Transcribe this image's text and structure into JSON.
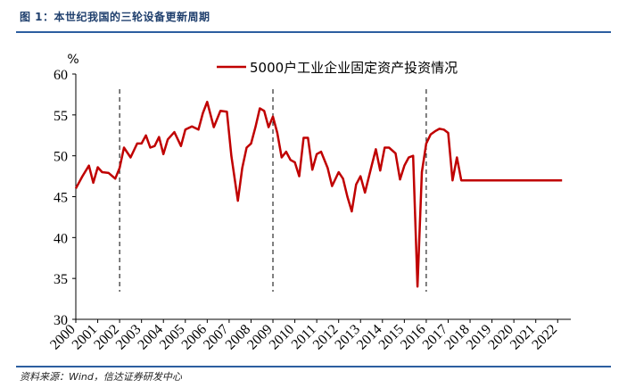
{
  "figure": {
    "title": "图 1：本世纪我国的三轮设备更新周期",
    "source": "资料来源：Wind，信达证券研发中心"
  },
  "chart_data": {
    "type": "line",
    "unit_label": "%",
    "ylim": [
      30,
      60
    ],
    "yticks": [
      "30",
      "35",
      "40",
      "45",
      "50",
      "55",
      "60"
    ],
    "xlim": [
      2000,
      2022.6
    ],
    "xticks": [
      "2000",
      "2001",
      "2002",
      "2003",
      "2004",
      "2005",
      "2006",
      "2007",
      "2008",
      "2009",
      "2010",
      "2011",
      "2012",
      "2013",
      "2014",
      "2015",
      "2016",
      "2017",
      "2018",
      "2019",
      "2020",
      "2021",
      "2022"
    ],
    "legend": "top-center",
    "cycle_markers": [
      2002,
      2009,
      2016
    ],
    "colors": {
      "series": "#c00000",
      "axis": "#000000"
    },
    "series": [
      {
        "name": "5000户工业企业固定资产投资情况",
        "x": [
          2000.0,
          2000.3,
          2000.6,
          2000.8,
          2001.0,
          2001.2,
          2001.5,
          2001.8,
          2002.0,
          2002.2,
          2002.5,
          2002.8,
          2003.0,
          2003.2,
          2003.4,
          2003.6,
          2003.8,
          2004.0,
          2004.2,
          2004.5,
          2004.8,
          2005.0,
          2005.3,
          2005.6,
          2005.8,
          2006.0,
          2006.3,
          2006.6,
          2006.9,
          2007.1,
          2007.4,
          2007.6,
          2007.8,
          2008.0,
          2008.2,
          2008.4,
          2008.6,
          2008.8,
          2009.0,
          2009.2,
          2009.4,
          2009.6,
          2009.8,
          2010.0,
          2010.2,
          2010.4,
          2010.6,
          2010.8,
          2011.0,
          2011.2,
          2011.5,
          2011.7,
          2012.0,
          2012.2,
          2012.4,
          2012.6,
          2012.8,
          2013.0,
          2013.2,
          2013.5,
          2013.7,
          2013.9,
          2014.1,
          2014.3,
          2014.6,
          2014.8,
          2015.0,
          2015.2,
          2015.4,
          2015.6,
          2015.8,
          2016.0,
          2016.2,
          2016.4,
          2016.6,
          2016.8,
          2017.0,
          2017.2,
          2017.4,
          2017.6,
          2017.8,
          2018.0,
          2018.2,
          2018.4,
          2018.6,
          2018.8,
          2019.0,
          2019.2,
          2019.4,
          2019.6,
          2019.8,
          2020.0,
          2020.2,
          2020.4,
          2020.6,
          2020.8,
          2021.0,
          2021.2,
          2021.4,
          2021.6,
          2021.8,
          2022.0,
          2022.2
        ],
        "values": [
          46.0,
          47.5,
          48.8,
          46.7,
          48.6,
          48.0,
          47.9,
          47.2,
          48.5,
          51.0,
          49.8,
          51.5,
          51.5,
          52.5,
          51.0,
          51.2,
          52.3,
          50.2,
          52.0,
          52.9,
          51.2,
          53.2,
          53.6,
          53.2,
          55.2,
          56.6,
          53.5,
          55.5,
          55.4,
          50.0,
          44.5,
          48.5,
          51.0,
          51.5,
          53.5,
          55.8,
          55.5,
          53.5,
          54.8,
          52.8,
          49.8,
          50.5,
          49.5,
          49.2,
          47.5,
          52.2,
          52.2,
          48.3,
          50.2,
          50.5,
          48.5,
          46.3,
          48.0,
          47.2,
          45.0,
          43.2,
          46.5,
          47.5,
          45.5,
          48.7,
          50.8,
          48.2,
          51.0,
          51.0,
          50.3,
          47.1,
          48.8,
          49.8,
          50.0,
          34.0,
          48.0,
          51.5,
          52.6,
          53.0,
          53.3,
          53.2,
          52.8,
          47.0,
          49.8,
          47.0,
          47.0,
          47.0,
          47.0,
          47.0,
          47.0,
          47.0,
          47.0,
          47.0,
          47.0,
          47.0,
          47.0,
          47.0,
          47.0,
          47.0,
          47.0,
          47.0,
          47.0,
          47.0,
          47.0,
          47.0,
          47.0,
          47.0,
          47.0
        ]
      }
    ]
  }
}
